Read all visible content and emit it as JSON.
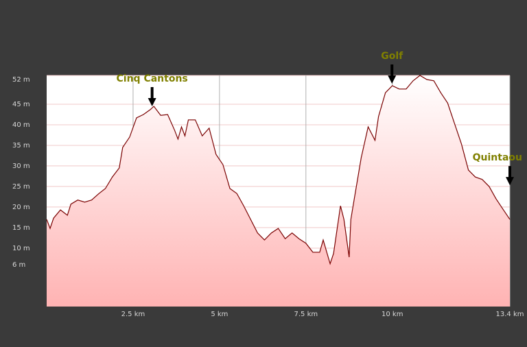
{
  "chart_data": {
    "type": "area",
    "x": [
      0,
      0.1,
      0.2,
      0.4,
      0.6,
      0.7,
      0.9,
      1.1,
      1.3,
      1.5,
      1.7,
      1.9,
      2.1,
      2.2,
      2.4,
      2.6,
      2.8,
      3.0,
      3.1,
      3.3,
      3.5,
      3.7,
      3.8,
      3.9,
      4.0,
      4.1,
      4.3,
      4.5,
      4.7,
      4.9,
      5.1,
      5.3,
      5.5,
      5.7,
      5.9,
      6.1,
      6.3,
      6.5,
      6.7,
      6.9,
      7.1,
      7.3,
      7.5,
      7.7,
      7.9,
      8.0,
      8.2,
      8.3,
      8.5,
      8.6,
      8.75,
      8.8,
      8.9,
      9.1,
      9.3,
      9.5,
      9.6,
      9.8,
      10.0,
      10.2,
      10.4,
      10.6,
      10.8,
      11.0,
      11.2,
      11.4,
      11.6,
      11.8,
      12.0,
      12.2,
      12.4,
      12.6,
      12.8,
      13.0,
      13.2,
      13.4
    ],
    "series": [
      {
        "color": "#7a0000",
        "values": [
          17,
          14.8,
          17.3,
          19.3,
          18,
          20.7,
          21.7,
          21.2,
          21.7,
          23.2,
          24.5,
          27.3,
          29.5,
          34.5,
          37,
          41.7,
          42.5,
          43.7,
          44.5,
          42.3,
          42.5,
          38.7,
          36.5,
          39.5,
          37.3,
          41.2,
          41.2,
          37.3,
          39.2,
          32.8,
          30.3,
          24.5,
          23.3,
          20.3,
          17,
          13.7,
          12,
          13.7,
          14.8,
          12.3,
          13.7,
          12.3,
          11.2,
          9,
          9,
          12,
          6.2,
          8.7,
          20.3,
          17,
          7.8,
          17,
          22,
          32,
          39.5,
          36.2,
          42,
          47.8,
          49.5,
          48.7,
          48.7,
          50.7,
          52,
          51,
          50.7,
          47.8,
          45.3,
          40.3,
          35.3,
          29,
          27.3,
          26.7,
          25,
          22,
          19.5,
          17
        ]
      }
    ],
    "fill_color": "#ffb3b3",
    "xlim": [
      0,
      13.4
    ],
    "ylim": [
      -4.2,
      52
    ],
    "xticks": [
      {
        "value": 2.5,
        "label": "2.5 km"
      },
      {
        "value": 5,
        "label": "5 km"
      },
      {
        "value": 7.5,
        "label": "7.5 km"
      },
      {
        "value": 10,
        "label": "10 km"
      },
      {
        "value": 13.4,
        "label": "13.4 km"
      }
    ],
    "yticks": [
      {
        "value": 52,
        "label": "52 m"
      },
      {
        "value": 45,
        "label": "45 m"
      },
      {
        "value": 40,
        "label": "40 m"
      },
      {
        "value": 35,
        "label": "35 m"
      },
      {
        "value": 30,
        "label": "30 m"
      },
      {
        "value": 25,
        "label": "25 m"
      },
      {
        "value": 20,
        "label": "20 m"
      },
      {
        "value": 15,
        "label": "15 m"
      },
      {
        "value": 10,
        "label": "10 m"
      },
      {
        "value": 6,
        "label": "6 m"
      }
    ],
    "grid": true,
    "annotations": [
      {
        "label": "Cinq Cantons",
        "x": 3.05,
        "y": 44.5
      },
      {
        "label": "Golf",
        "x": 9.99,
        "y": 50
      },
      {
        "label": "Quintaou",
        "x": 13.4,
        "y": 25.3
      }
    ]
  }
}
